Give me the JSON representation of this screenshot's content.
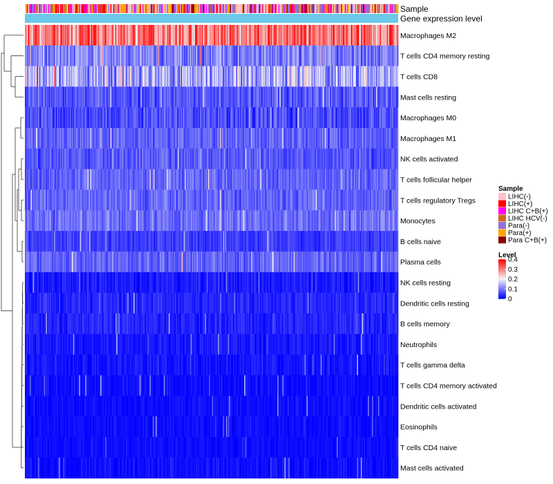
{
  "chart_data": {
    "type": "heatmap",
    "annotation_rows": [
      "Sample",
      "Gene expression level"
    ],
    "rows": [
      "Macrophages M2",
      "T cells CD4 memory resting",
      "T cells CD8",
      "Mast cells resting",
      "Macrophages M0",
      "Macrophages M1",
      "NK cells activated",
      "T cells follicular helper",
      "T cells regulatory  Tregs",
      "Monocytes",
      "B cells naive",
      "Plasma cells",
      "NK cells resting",
      "Dendritic cells resting",
      "B cells memory",
      "Neutrophils",
      "T cells gamma delta",
      "T cells CD4 memory activated",
      "Dendritic cells activated",
      "Eosinophils",
      "T cells CD4 naive",
      "Mast cells activated"
    ],
    "row_mean_levels": [
      0.3,
      0.1,
      0.14,
      0.07,
      0.06,
      0.08,
      0.07,
      0.08,
      0.08,
      0.09,
      0.05,
      0.08,
      0.02,
      0.03,
      0.03,
      0.02,
      0.015,
      0.01,
      0.01,
      0.01,
      0.01,
      0.01
    ],
    "row_spread": [
      0.12,
      0.08,
      0.12,
      0.06,
      0.06,
      0.05,
      0.05,
      0.05,
      0.05,
      0.05,
      0.04,
      0.05,
      0.035,
      0.03,
      0.035,
      0.03,
      0.03,
      0.025,
      0.02,
      0.02,
      0.02,
      0.03
    ],
    "n_columns": 371,
    "color_scale": {
      "min": 0,
      "max": 0.4,
      "stops": [
        {
          "value": 0,
          "color": "#0000ff"
        },
        {
          "value": 0.2,
          "color": "#f5f5f5"
        },
        {
          "value": 0.4,
          "color": "#ff0000"
        }
      ]
    },
    "sample_group_mix": [
      0.25,
      0.16,
      0.14,
      0.1,
      0.2,
      0.09,
      0.06
    ],
    "gene_expression_annotation_color": "#6cc8e8",
    "legend": {
      "sample": {
        "title": "Sample",
        "entries": [
          {
            "label": "LIHC(-)",
            "color": "#ffc0cb"
          },
          {
            "label": "LIHC(+)",
            "color": "#ff0000"
          },
          {
            "label": "LIHC C+B(+)",
            "color": "#ff00ff"
          },
          {
            "label": "LIHC HCV(-)",
            "color": "#d2691e"
          },
          {
            "label": "Para(-)",
            "color": "#9370db"
          },
          {
            "label": "Para(+)",
            "color": "#ffa500"
          },
          {
            "label": "Para C+B(+)",
            "color": "#8b0000"
          }
        ]
      },
      "level": {
        "title": "Level",
        "ticks": [
          {
            "value": 0.4,
            "label": "0.4"
          },
          {
            "value": 0.3,
            "label": "0.3"
          },
          {
            "value": 0.2,
            "label": "0.2"
          },
          {
            "value": 0.1,
            "label": "0.1"
          },
          {
            "value": 0,
            "label": "0"
          }
        ]
      }
    }
  }
}
